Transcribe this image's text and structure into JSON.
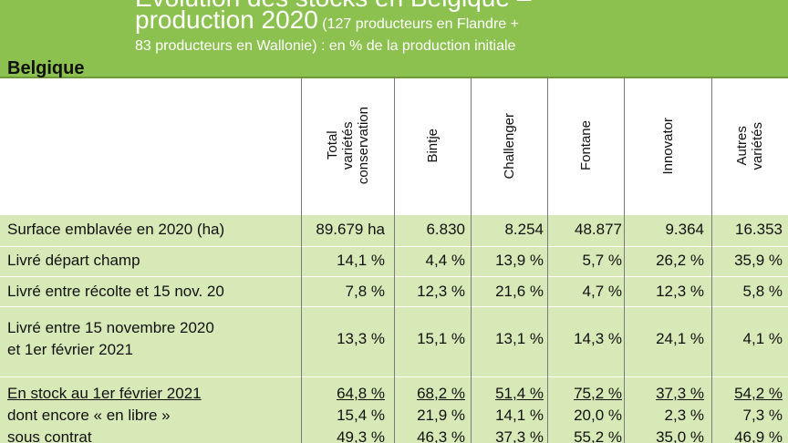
{
  "banner": {
    "line1": "Evolution des stocks en Belgique –",
    "line2_big": "production 2020",
    "line2_small": " (127 producteurs en Flandre +",
    "line3": "83 producteurs en Wallonie) : en % de la production initiale"
  },
  "table": {
    "corner_label": "Belgique",
    "columns": [
      "Total\nvariétés\nconservation",
      "Bintje",
      "Challenger",
      "Fontane",
      "Innovator",
      "Autres\nvariétés"
    ],
    "rows": [
      {
        "label": "Surface emblavée en 2020 (ha)",
        "values": [
          "89.679 ha",
          "6.830",
          "8.254",
          "48.877",
          "9.364",
          "16.353"
        ]
      },
      {
        "label": "Livré départ champ",
        "values": [
          "14,1 %",
          "4,4 %",
          "13,9 %",
          "5,7 %",
          "26,2 %",
          "35,9 %"
        ]
      },
      {
        "label": "Livré entre récolte et 15 nov. 20",
        "values": [
          "7,8 %",
          "12,3 %",
          "21,6 %",
          "4,7 %",
          "12,3 %",
          "5,8 %"
        ]
      },
      {
        "label": "Livré entre 15 novembre 2020",
        "label2": "et 1er février 2021",
        "values": [
          "13,3 %",
          "15,1 %",
          "13,1 %",
          "14,3 %",
          "24,1 %",
          "4,1 %"
        ]
      },
      {
        "label": "En stock au 1er février 2021",
        "values": [
          "64,8 %",
          "68,2 %",
          "51,4 %",
          "75,2 %",
          "37,3 %",
          "54,2 %"
        ]
      },
      {
        "label": "dont encore « en libre »",
        "values": [
          "15,4 %",
          "21,9 %",
          "14,1 %",
          "20,0 %",
          "2,3 %",
          "7,3 %"
        ]
      },
      {
        "label": "sous contrat",
        "values": [
          "49,3 %",
          "46,3 %",
          "37,3 %",
          "55,2 %",
          "35,0 %",
          "46,9 %"
        ]
      }
    ]
  }
}
